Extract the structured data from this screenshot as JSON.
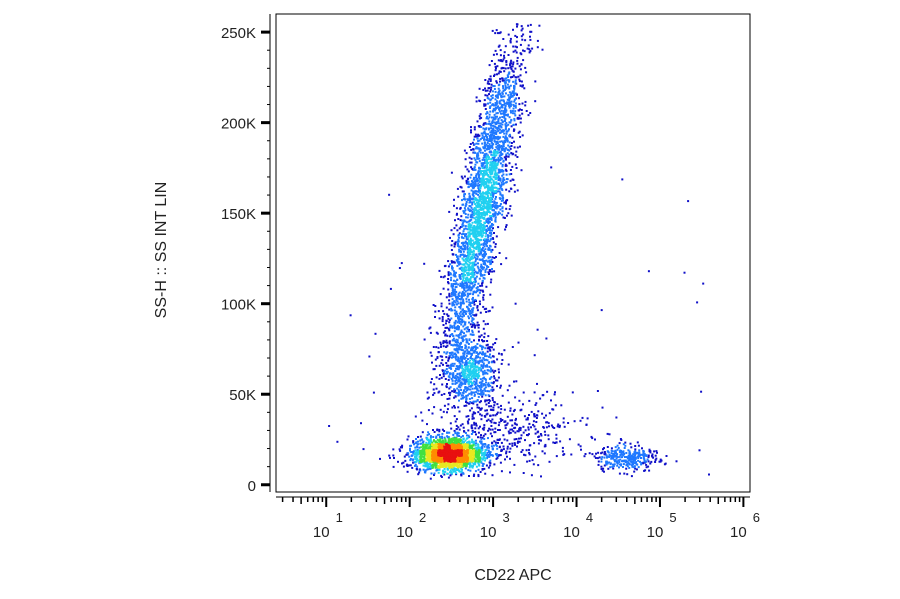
{
  "chart_data": {
    "type": "scatter",
    "subtype": "flow-cytometry-density-dot-plot",
    "title": "",
    "xlabel": "CD22 APC",
    "ylabel": "SS-H :: SS INT LIN",
    "x_scale": "log",
    "y_scale": "linear",
    "xlim": [
      2.5,
      1200000
    ],
    "ylim": [
      -4000,
      260000
    ],
    "grid": false,
    "legend": "none",
    "x_ticks": [
      {
        "base": "10",
        "exp": "1",
        "value": 10
      },
      {
        "base": "10",
        "exp": "2",
        "value": 100
      },
      {
        "base": "10",
        "exp": "3",
        "value": 1000
      },
      {
        "base": "10",
        "exp": "4",
        "value": 10000
      },
      {
        "base": "10",
        "exp": "5",
        "value": 100000
      },
      {
        "base": "10",
        "exp": "6",
        "value": 1000000
      }
    ],
    "y_ticks": [
      {
        "label": "0",
        "value": 0
      },
      {
        "label": "50K",
        "value": 50000
      },
      {
        "label": "100K",
        "value": 100000
      },
      {
        "label": "150K",
        "value": 150000
      },
      {
        "label": "200K",
        "value": 200000
      },
      {
        "label": "250K",
        "value": 250000
      }
    ],
    "density_colors": [
      "#1010c8",
      "#1e78ff",
      "#20d0f0",
      "#40e040",
      "#e8e820",
      "#ff8c00",
      "#e81010"
    ],
    "populations": [
      {
        "center_x": 300,
        "center_y": 17000,
        "sd_log10_x": 0.22,
        "sd_y": 4500,
        "events": 2200
      },
      {
        "center_x": 750,
        "center_y": 155000,
        "sd_log10_x": 0.13,
        "sd_y": 45000,
        "slope_log10_per_100k": 0.42,
        "events": 3000
      },
      {
        "center_x": 550,
        "center_y": 62000,
        "sd_log10_x": 0.16,
        "sd_y": 11000,
        "events": 700
      },
      {
        "center_x": 40000,
        "center_y": 15000,
        "sd_log10_x": 0.2,
        "sd_y": 3500,
        "events": 300
      },
      {
        "center_x": 1500,
        "center_y": 30000,
        "sd_log10_x": 0.4,
        "sd_y": 10000,
        "events": 350
      }
    ]
  }
}
